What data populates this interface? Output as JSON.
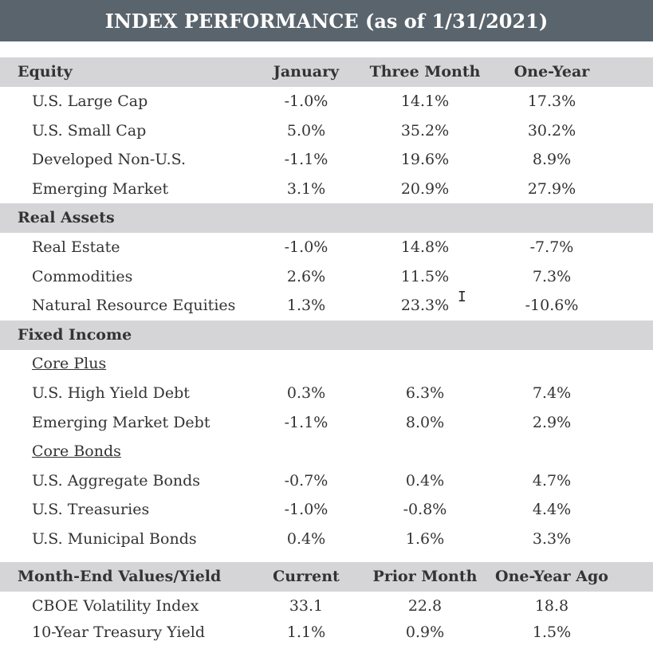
{
  "title": "INDEX PERFORMANCE (as of 1/31/2021)",
  "equity": {
    "header": [
      "Equity",
      "January",
      "Three Month",
      "One-Year"
    ],
    "rows": [
      [
        "U.S. Large Cap",
        "-1.0%",
        "14.1%",
        "17.3%"
      ],
      [
        "U.S. Small Cap",
        "5.0%",
        "35.2%",
        "30.2%"
      ],
      [
        "Developed Non-U.S.",
        "-1.1%",
        "19.6%",
        "8.9%"
      ],
      [
        "Emerging Market",
        "3.1%",
        "20.9%",
        "27.9%"
      ]
    ]
  },
  "real_assets": {
    "header": "Real Assets",
    "rows": [
      [
        "Real Estate",
        "-1.0%",
        "14.8%",
        "-7.7%"
      ],
      [
        "Commodities",
        "2.6%",
        "11.5%",
        "7.3%"
      ],
      [
        "Natural Resource Equities",
        "1.3%",
        "23.3%",
        "-10.6%"
      ]
    ]
  },
  "fixed_income": {
    "header": "Fixed Income",
    "core_plus": {
      "label": "Core Plus",
      "rows": [
        [
          "U.S. High Yield Debt",
          "0.3%",
          "6.3%",
          "7.4%"
        ],
        [
          "Emerging Market Debt",
          "-1.1%",
          "8.0%",
          "2.9%"
        ]
      ]
    },
    "core_bonds": {
      "label": "Core Bonds",
      "rows": [
        [
          "U.S. Aggregate Bonds",
          "-0.7%",
          "0.4%",
          "4.7%"
        ],
        [
          "U.S. Treasuries",
          "-1.0%",
          "-0.8%",
          "4.4%"
        ],
        [
          "U.S. Municipal Bonds",
          "0.4%",
          "1.6%",
          "3.3%"
        ]
      ]
    }
  },
  "month_end": {
    "header": [
      "Month-End Values/Yield",
      "Current",
      "Prior Month",
      "One-Year Ago"
    ],
    "rows": [
      [
        "CBOE Volatility Index",
        "33.1",
        "22.8",
        "18.8"
      ],
      [
        "10-Year Treasury Yield",
        "1.1%",
        "0.9%",
        "1.5%"
      ]
    ]
  },
  "cursor_glyph": "I"
}
